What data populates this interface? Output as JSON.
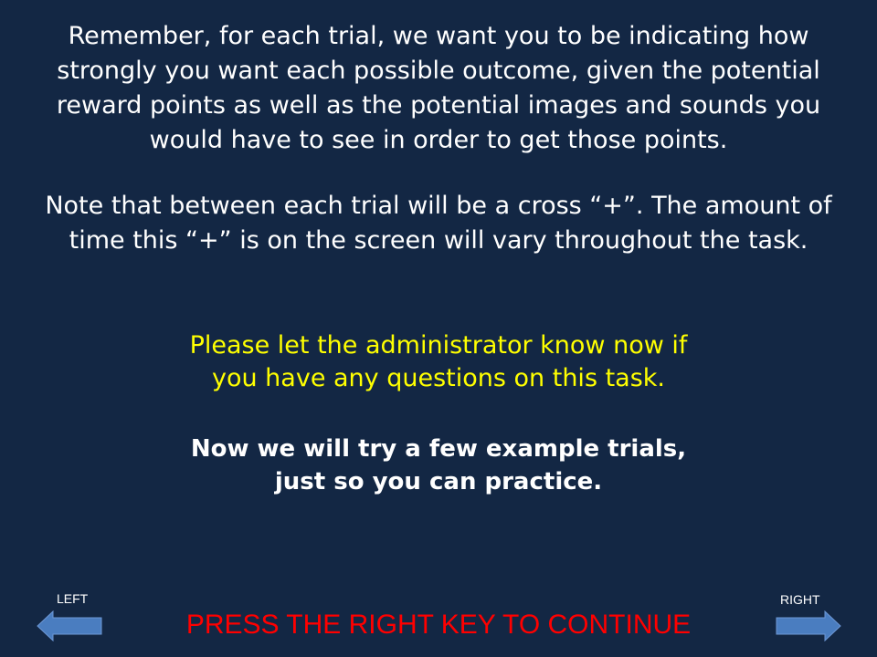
{
  "instructions": {
    "paragraph1": [
      "Remember, for each trial, we want you to be indicating how",
      "strongly you want each possible outcome, given the potential",
      "reward points as well as the potential images and sounds you",
      "would have to see in order to get those points."
    ],
    "paragraph2": [
      "Note that between each trial will be a cross “+”. The amount of",
      "time this “+” is on the screen will vary throughout the task."
    ]
  },
  "notice": [
    "Please let the administrator know now if",
    "you have any questions on this task."
  ],
  "practice_note": [
    "Now we will try a few example trials,",
    "just so you can practice."
  ],
  "navigation": {
    "left_label": "LEFT",
    "right_label": "RIGHT",
    "continue_prompt": "PRESS THE RIGHT KEY TO CONTINUE",
    "left_icon": "left-arrow-icon",
    "right_icon": "right-arrow-icon"
  },
  "colors": {
    "background": "#132744",
    "body_text": "#ffffff",
    "notice_text": "#ffff00",
    "continue_text": "#ff0000",
    "arrow_fill": "#4a7dc0"
  }
}
